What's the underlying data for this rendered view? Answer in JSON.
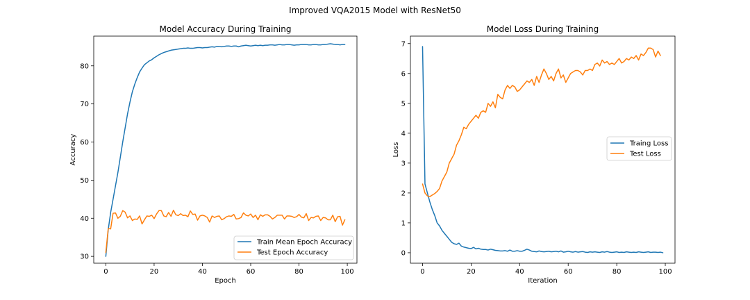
{
  "figure": {
    "suptitle": "Improved VQA2015 Model with ResNet50"
  },
  "colors": {
    "blue": "#1f77b4",
    "orange": "#ff7f0e"
  },
  "chart_data": [
    {
      "type": "line",
      "title": "Model Accuracy During Training",
      "xlabel": "Epoch",
      "ylabel": "Accuracy",
      "xlim": [
        -5,
        104
      ],
      "ylim": [
        28.2,
        87.8
      ],
      "xticks": [
        0,
        20,
        40,
        60,
        80,
        100
      ],
      "yticks": [
        30,
        40,
        50,
        60,
        70,
        80
      ],
      "legend_position": "lower-right",
      "series": [
        {
          "name": "Train Mean Epoch Accuracy",
          "color": "#1f77b4",
          "x_start": 0,
          "x_step": 1,
          "values": [
            30.0,
            37.0,
            41.5,
            45.0,
            48.5,
            52.0,
            56.0,
            60.0,
            63.7,
            67.4,
            70.5,
            73.2,
            75.2,
            76.9,
            78.4,
            79.4,
            80.3,
            80.8,
            81.3,
            81.6,
            82.1,
            82.5,
            82.9,
            83.2,
            83.5,
            83.7,
            83.9,
            84.1,
            84.2,
            84.3,
            84.4,
            84.5,
            84.6,
            84.6,
            84.7,
            84.6,
            84.6,
            84.7,
            84.8,
            84.8,
            84.7,
            84.8,
            84.8,
            84.9,
            85.0,
            84.9,
            85.1,
            85.1,
            85.0,
            85.1,
            85.2,
            85.2,
            85.1,
            85.2,
            85.2,
            85.0,
            85.2,
            85.3,
            85.4,
            85.3,
            85.2,
            85.3,
            85.4,
            85.3,
            85.4,
            85.3,
            85.4,
            85.4,
            85.5,
            85.5,
            85.4,
            85.5,
            85.6,
            85.5,
            85.5,
            85.6,
            85.6,
            85.5,
            85.4,
            85.5,
            85.5,
            85.6,
            85.6,
            85.6,
            85.5,
            85.5,
            85.6,
            85.6,
            85.5,
            85.5,
            85.6,
            85.6,
            85.7,
            85.8,
            85.7,
            85.6,
            85.6,
            85.5,
            85.6,
            85.6
          ]
        },
        {
          "name": "Test Epoch Accuracy",
          "color": "#ff7f0e",
          "x_start": 0,
          "x_step": 1,
          "values": [
            31.0,
            37.3,
            37.2,
            41.3,
            41.4,
            40.0,
            40.5,
            42.0,
            41.6,
            40.1,
            40.6,
            39.4,
            39.8,
            39.7,
            40.6,
            38.5,
            39.6,
            40.6,
            40.5,
            40.8,
            39.9,
            41.1,
            42.0,
            42.0,
            40.6,
            40.4,
            41.5,
            40.5,
            42.1,
            40.9,
            40.7,
            41.2,
            40.7,
            40.8,
            40.4,
            41.9,
            41.0,
            41.1,
            39.5,
            40.6,
            40.8,
            40.6,
            40.2,
            39.0,
            40.6,
            40.2,
            40.5,
            40.6,
            39.6,
            39.9,
            40.4,
            40.6,
            40.5,
            41.0,
            39.8,
            39.9,
            40.2,
            41.4,
            40.8,
            40.6,
            41.1,
            40.2,
            40.8,
            39.6,
            40.9,
            40.5,
            40.9,
            40.9,
            40.5,
            39.8,
            40.2,
            40.8,
            40.8,
            40.8,
            39.8,
            40.6,
            40.6,
            40.5,
            40.2,
            40.4,
            41.0,
            40.3,
            40.1,
            41.2,
            39.4,
            40.2,
            40.1,
            40.5,
            40.6,
            39.4,
            40.2,
            40.1,
            39.6,
            39.6,
            40.8,
            39.1,
            40.4,
            40.5,
            38.2,
            39.6
          ]
        }
      ]
    },
    {
      "type": "line",
      "title": "Model Loss During Training",
      "xlabel": "Iteration",
      "ylabel": "Loss",
      "xlim": [
        -5,
        104
      ],
      "ylim": [
        -0.35,
        7.25
      ],
      "xticks": [
        0,
        20,
        40,
        60,
        80,
        100
      ],
      "yticks": [
        0,
        1,
        2,
        3,
        4,
        5,
        6,
        7
      ],
      "legend_position": "center-right",
      "series": [
        {
          "name": "Traing Loss",
          "color": "#1f77b4",
          "x_start": 0,
          "x_step": 1,
          "values": [
            6.9,
            2.3,
            2.0,
            1.7,
            1.45,
            1.25,
            1.0,
            0.9,
            0.75,
            0.65,
            0.55,
            0.45,
            0.35,
            0.3,
            0.28,
            0.32,
            0.22,
            0.19,
            0.17,
            0.15,
            0.14,
            0.18,
            0.13,
            0.15,
            0.12,
            0.11,
            0.11,
            0.09,
            0.12,
            0.1,
            0.08,
            0.07,
            0.06,
            0.06,
            0.07,
            0.05,
            0.09,
            0.05,
            0.05,
            0.07,
            0.05,
            0.05,
            0.08,
            0.12,
            0.09,
            0.05,
            0.04,
            0.03,
            0.06,
            0.04,
            0.03,
            0.04,
            0.05,
            0.03,
            0.04,
            0.05,
            0.03,
            0.06,
            0.02,
            0.03,
            0.05,
            0.03,
            0.02,
            0.04,
            0.02,
            0.03,
            0.04,
            0.02,
            0.01,
            0.03,
            0.02,
            0.03,
            0.02,
            0.01,
            0.03,
            0.02,
            0.04,
            0.02,
            0.01,
            0.02,
            0.03,
            0.01,
            0.02,
            0.01,
            0.03,
            0.02,
            0.01,
            0.02,
            0.01,
            0.03,
            0.02,
            0.01,
            0.02,
            0.03,
            0.01,
            0.02,
            0.02,
            0.01,
            0.02,
            0.0
          ]
        },
        {
          "name": "Test Loss",
          "color": "#ff7f0e",
          "x_start": 0,
          "x_step": 1,
          "values": [
            2.3,
            2.0,
            1.9,
            1.88,
            1.93,
            1.98,
            2.05,
            2.15,
            2.4,
            2.55,
            2.7,
            3.0,
            3.15,
            3.3,
            3.6,
            3.75,
            3.95,
            4.2,
            4.15,
            4.3,
            4.4,
            4.5,
            4.6,
            4.5,
            4.7,
            4.75,
            4.7,
            5.0,
            4.9,
            5.05,
            4.85,
            5.3,
            5.2,
            5.15,
            5.45,
            5.6,
            5.5,
            5.6,
            5.55,
            5.4,
            5.45,
            5.55,
            5.65,
            5.75,
            5.7,
            5.8,
            5.6,
            5.9,
            5.7,
            5.95,
            6.15,
            6.0,
            5.8,
            5.9,
            5.75,
            6.0,
            6.15,
            5.85,
            5.95,
            5.7,
            5.85,
            6.0,
            6.05,
            6.1,
            6.1,
            6.05,
            5.95,
            6.1,
            6.1,
            6.15,
            6.1,
            6.3,
            6.35,
            6.25,
            6.45,
            6.35,
            6.4,
            6.3,
            6.35,
            6.3,
            6.4,
            6.5,
            6.35,
            6.4,
            6.5,
            6.45,
            6.55,
            6.5,
            6.6,
            6.45,
            6.65,
            6.6,
            6.7,
            6.85,
            6.85,
            6.8,
            6.55,
            6.75,
            6.6
          ]
        }
      ]
    }
  ]
}
